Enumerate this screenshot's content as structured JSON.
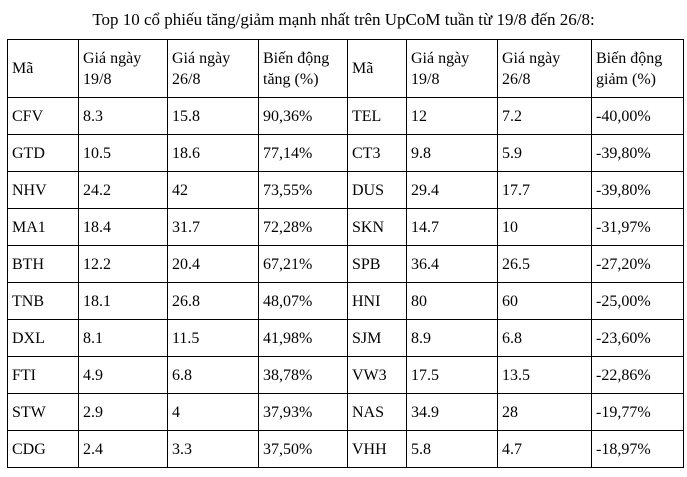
{
  "page": {
    "title": "Top 10 cổ phiếu tăng/giảm mạnh nhất trên UpCoM tuần từ 19/8 đến 26/8:"
  },
  "table": {
    "headers": [
      "Mã",
      "Giá ngày 19/8",
      "Giá ngày 26/8",
      "Biến động tăng (%)",
      "Mã",
      "Giá ngày 19/8",
      "Giá ngày 26/8",
      "Biến động giảm (%)"
    ],
    "rows": [
      [
        "CFV",
        "8.3",
        "15.8",
        "90,36%",
        "TEL",
        "12",
        "7.2",
        "-40,00%"
      ],
      [
        "GTD",
        "10.5",
        "18.6",
        "77,14%",
        "CT3",
        "9.8",
        "5.9",
        "-39,80%"
      ],
      [
        "NHV",
        "24.2",
        "42",
        "73,55%",
        "DUS",
        "29.4",
        "17.7",
        "-39,80%"
      ],
      [
        "MA1",
        "18.4",
        "31.7",
        "72,28%",
        "SKN",
        "14.7",
        "10",
        "-31,97%"
      ],
      [
        "BTH",
        "12.2",
        "20.4",
        "67,21%",
        "SPB",
        "36.4",
        "26.5",
        "-27,20%"
      ],
      [
        "TNB",
        "18.1",
        "26.8",
        "48,07%",
        "HNI",
        "80",
        "60",
        "-25,00%"
      ],
      [
        "DXL",
        "8.1",
        "11.5",
        "41,98%",
        "SJM",
        "8.9",
        "6.8",
        "-23,60%"
      ],
      [
        "FTI",
        "4.9",
        "6.8",
        "38,78%",
        "VW3",
        "17.5",
        "13.5",
        "-22,86%"
      ],
      [
        "STW",
        "2.9",
        "4",
        "37,93%",
        "NAS",
        "34.9",
        "28",
        "-19,77%"
      ],
      [
        "CDG",
        "2.4",
        "3.3",
        "37,50%",
        "VHH",
        "5.8",
        "4.7",
        "-18,97%"
      ]
    ]
  }
}
